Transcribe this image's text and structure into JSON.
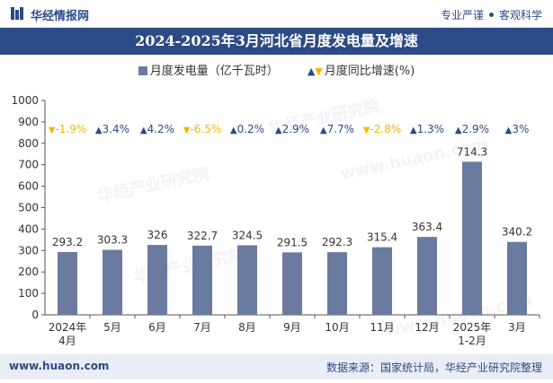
{
  "header": {
    "logo_text": "华经情报网",
    "right_text_1": "专业严谨",
    "right_text_2": "客观科学"
  },
  "title": "2024-2025年3月河北省月度发电量及增速",
  "legend": {
    "bar_label": "月度发电量（亿千瓦时）",
    "growth_label": "月度同比增速(%)"
  },
  "footer": {
    "website": "www.huaon.com",
    "source": "数据来源：国家统计局，华经产业研究院整理"
  },
  "watermarks": [
    "华经产业研究院",
    "www.huaon.com"
  ],
  "colors": {
    "bar": "#6a7b9f",
    "up": "#2c4a86",
    "down": "#f2b705",
    "title_bg": "#2c4a86"
  },
  "chart_data": {
    "type": "bar",
    "categories": [
      "2024年\n4月",
      "5月",
      "6月",
      "7月",
      "8月",
      "9月",
      "10月",
      "11月",
      "12月",
      "2025年\n1-2月",
      "3月"
    ],
    "series": [
      {
        "name": "月度发电量（亿千瓦时）",
        "values": [
          293.2,
          303.3,
          326,
          322.7,
          324.5,
          291.5,
          292.3,
          315.4,
          363.4,
          714.3,
          340.2
        ]
      }
    ],
    "value_labels": [
      "293.2",
      "303.3",
      "326",
      "322.7",
      "324.5",
      "291.5",
      "292.3",
      "315.4",
      "363.4",
      "714.3",
      "340.2"
    ],
    "growth": {
      "name": "月度同比增速(%)",
      "labels": [
        "-1.9%",
        "3.4%",
        "4.2%",
        "-6.5%",
        "0.2%",
        "2.9%",
        "7.7%",
        "-2.8%",
        "1.3%",
        "2.9%",
        "3%"
      ],
      "direction": [
        "down",
        "up",
        "up",
        "down",
        "up",
        "up",
        "up",
        "down",
        "up",
        "up",
        "up"
      ]
    },
    "ylim": [
      0,
      1000
    ],
    "yticks": [
      0,
      100,
      200,
      300,
      400,
      500,
      600,
      700,
      800,
      900,
      1000
    ],
    "grid": false
  }
}
